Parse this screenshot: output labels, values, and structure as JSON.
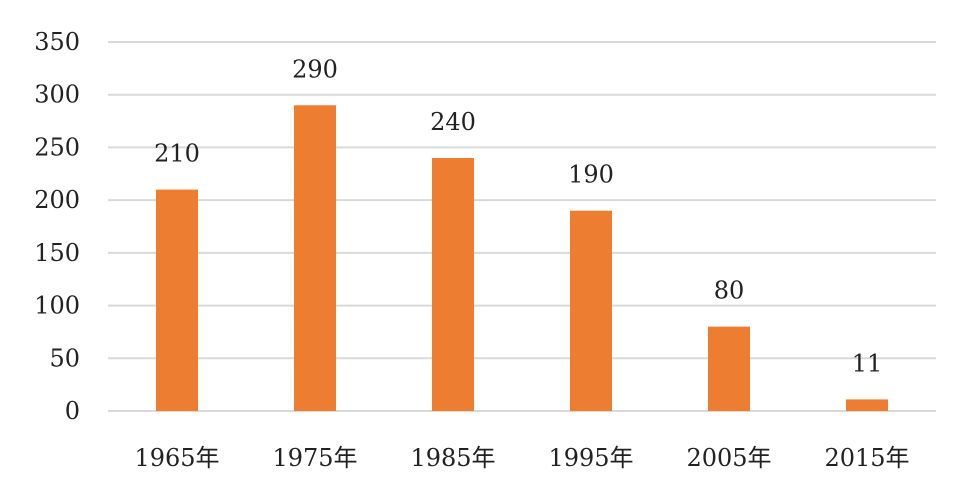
{
  "chart_data": {
    "type": "bar",
    "categories": [
      "1965年",
      "1975年",
      "1985年",
      "1995年",
      "2005年",
      "2015年"
    ],
    "series": [
      {
        "values": [
          210,
          290,
          240,
          190,
          80,
          11
        ],
        "color": "#ED7D31"
      }
    ],
    "data_labels": [
      "210",
      "290",
      "240",
      "190",
      "80",
      "11"
    ],
    "y_ticks": [
      0,
      50,
      100,
      150,
      200,
      250,
      300,
      350
    ],
    "y_tick_labels": [
      "0",
      "50",
      "100",
      "150",
      "200",
      "250",
      "300",
      "350"
    ],
    "ylim": [
      0,
      350
    ],
    "grid": true,
    "legend": "none",
    "gridline_color": "#D9D9D9"
  }
}
